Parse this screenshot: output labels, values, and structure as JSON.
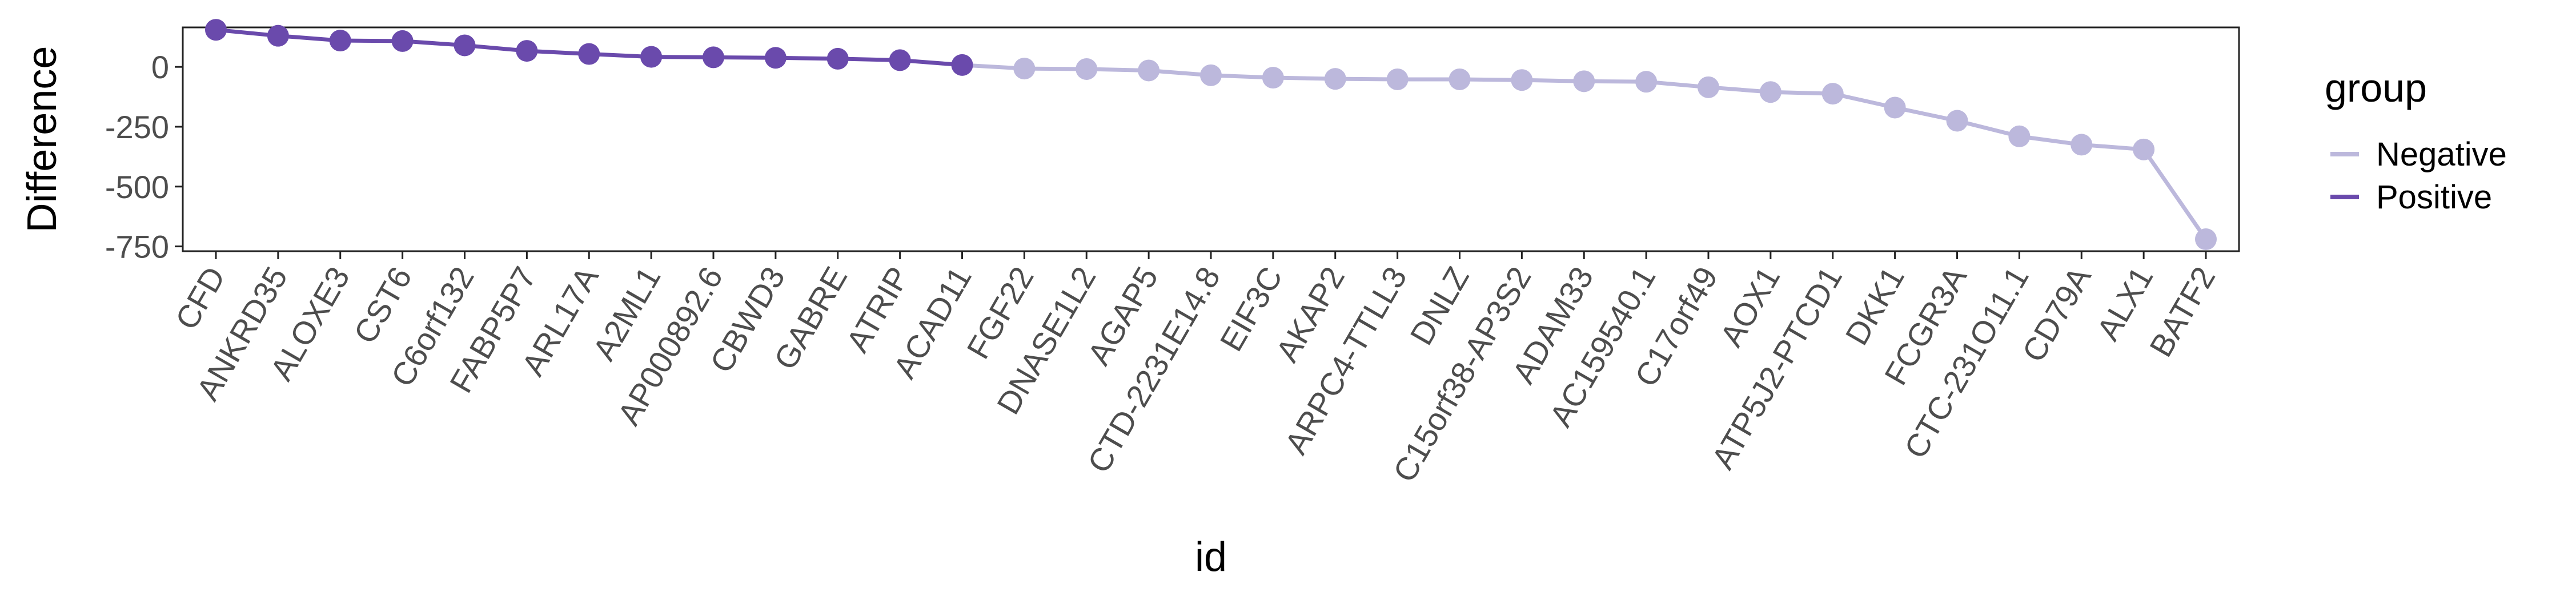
{
  "chart_data": {
    "type": "line",
    "title": "",
    "xlabel": "id",
    "ylabel": "Difference",
    "ylim": [
      -770,
      165
    ],
    "yticks": [
      0,
      -250,
      -500,
      -750
    ],
    "ytick_labels": [
      "0",
      "-250",
      "-500",
      "-750"
    ],
    "grid": false,
    "legend": {
      "title": "group",
      "placement": "right",
      "entries": [
        "Negative",
        "Positive"
      ]
    },
    "colors": {
      "Negative": "#BCB8DC",
      "Positive": "#6A4AAC"
    },
    "categories": [
      "CFD",
      "ANKRD35",
      "ALOXE3",
      "CST6",
      "C6orf132",
      "FABP5P7",
      "ARL17A",
      "A2ML1",
      "AP000892.6",
      "CBWD3",
      "GABRE",
      "ATRIP",
      "ACAD11",
      "FGF22",
      "DNASE1L2",
      "AGAP5",
      "CTD-2231E14.8",
      "EIF3C",
      "AKAP2",
      "ARPC4-TTLL3",
      "DNLZ",
      "C15orf38-AP3S2",
      "ADAM33",
      "AC159540.1",
      "C17orf49",
      "AOX1",
      "ATP5J2-PTCD1",
      "DKK1",
      "FCGR3A",
      "CTC-231O11.1",
      "CD79A",
      "ALX1",
      "BATF2"
    ],
    "values": [
      155,
      130,
      110,
      108,
      90,
      67,
      54,
      42,
      40,
      38,
      34,
      28,
      8,
      -7,
      -9,
      -15,
      -35,
      -45,
      -50,
      -52,
      -52,
      -55,
      -60,
      -62,
      -85,
      -105,
      -112,
      -170,
      -225,
      -290,
      -325,
      -345,
      -720
    ],
    "groups": [
      "Positive",
      "Positive",
      "Positive",
      "Positive",
      "Positive",
      "Positive",
      "Positive",
      "Positive",
      "Positive",
      "Positive",
      "Positive",
      "Positive",
      "Positive",
      "Negative",
      "Negative",
      "Negative",
      "Negative",
      "Negative",
      "Negative",
      "Negative",
      "Negative",
      "Negative",
      "Negative",
      "Negative",
      "Negative",
      "Negative",
      "Negative",
      "Negative",
      "Negative",
      "Negative",
      "Negative",
      "Negative",
      "Negative"
    ]
  }
}
